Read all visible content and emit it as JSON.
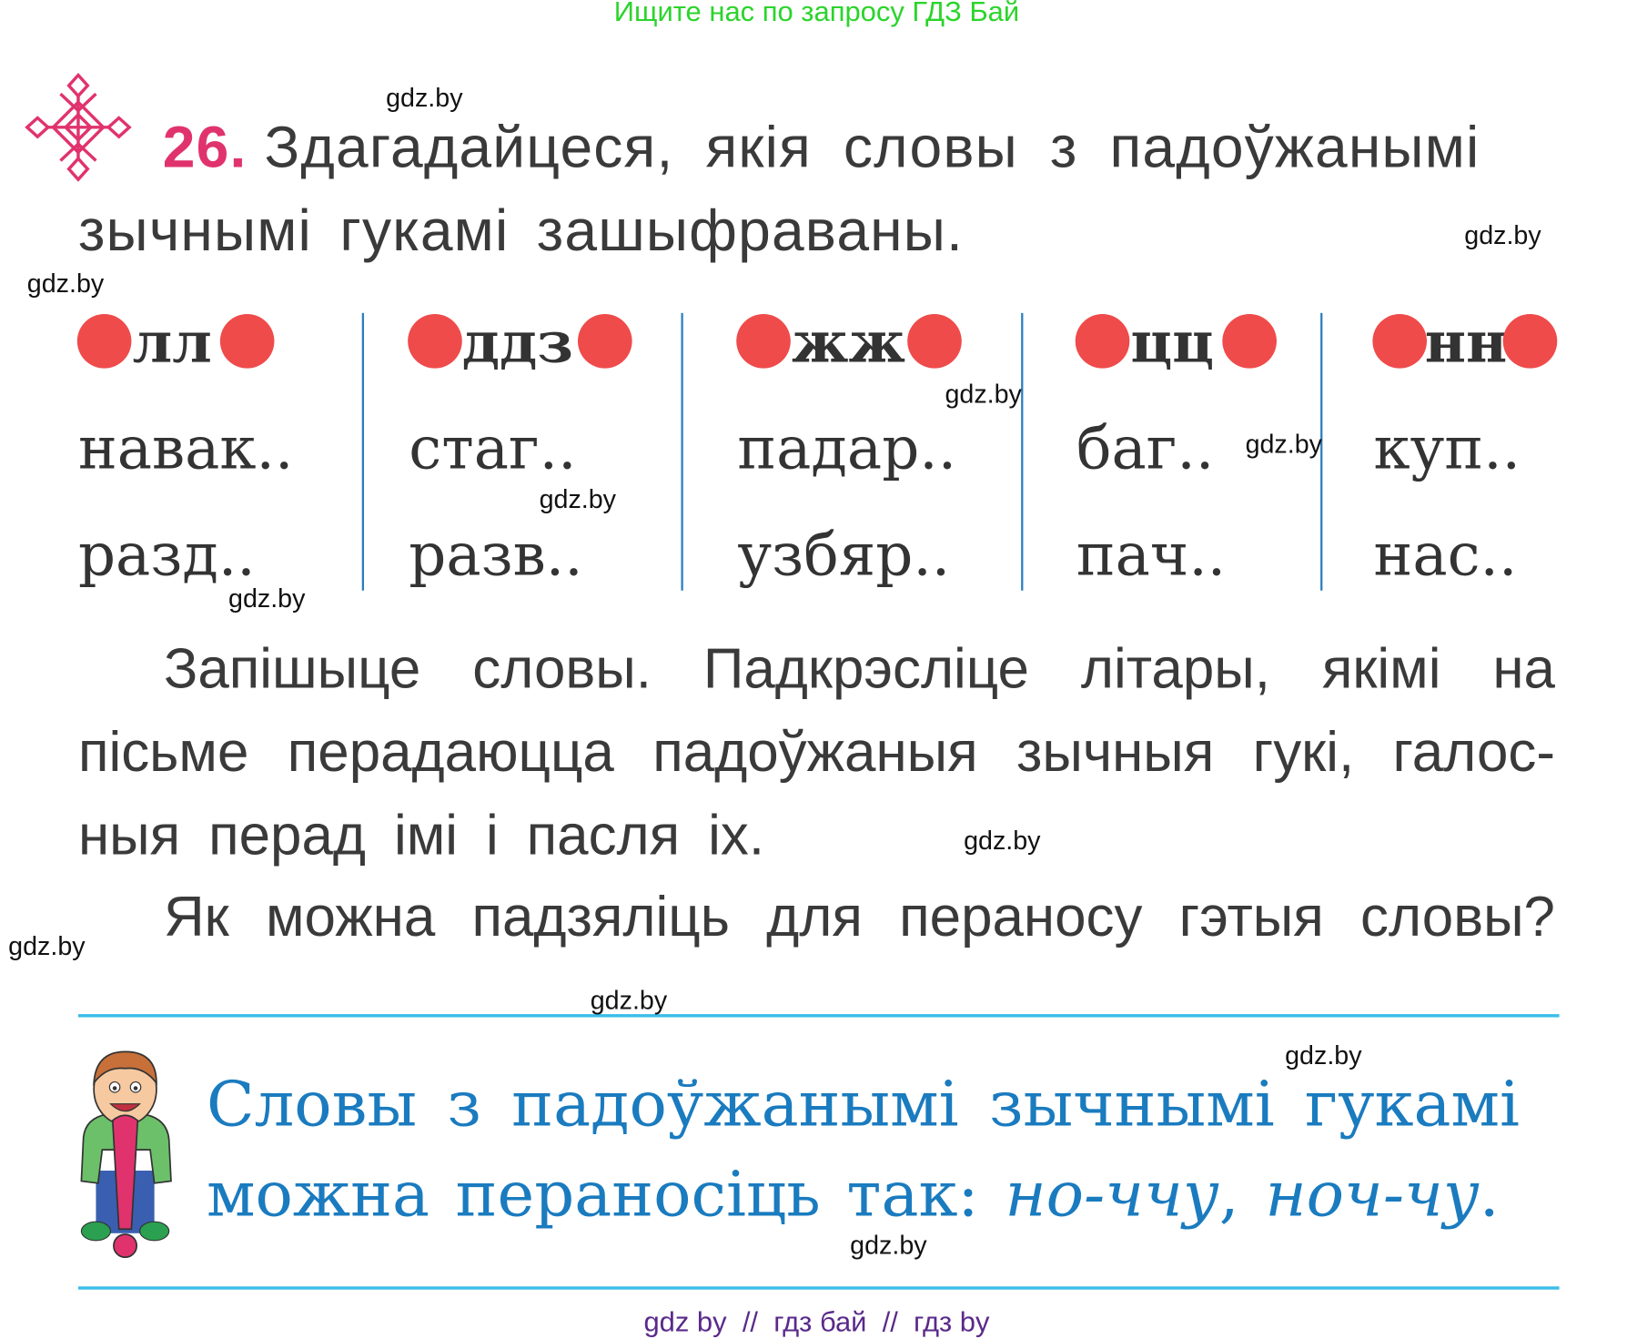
{
  "header_banner": "Ищите нас по запросу ГДЗ Бай",
  "task": {
    "number": "26.",
    "line1": "Здагадайцеся, якія словы з падоўжанымі",
    "line2": "зычнымі гукамі зашыфраваны."
  },
  "columns": [
    {
      "cipher": "лл",
      "words": [
        "навак..",
        "разд.."
      ]
    },
    {
      "cipher": "ддз",
      "words": [
        "стаг..",
        "разв.."
      ]
    },
    {
      "cipher": "жж",
      "words": [
        "падар..",
        "узбяр.."
      ]
    },
    {
      "cipher": "цц",
      "words": [
        "баг..",
        "пач.."
      ]
    },
    {
      "cipher": "нн",
      "words": [
        "куп..",
        "нас.."
      ]
    }
  ],
  "instructions": {
    "p1_line1": "Запішыце словы. Падкрэсліце літары, якімі на",
    "p1_line2": "пісьме перадаюцца падоўжаныя зычныя гукі, галос-",
    "p1_line3": "ныя перад імі і пасля іх.",
    "p2": "Як можна падзяліць для пераносу гэтыя словы?"
  },
  "rule": {
    "line1": "Словы з падоўжанымі зычнымі гукамі",
    "line2_prefix": "можна пераносіць так: ",
    "example1": "но-ччу",
    "sep": ", ",
    "example2": "ноч-чу",
    "end": "."
  },
  "watermark": "gdz.by",
  "footer": "gdz by  //  гдз бай  //  гдз by",
  "colors": {
    "accent_number": "#e0336e",
    "rule_text": "#1a7bbf",
    "dots": "#ef4b4b",
    "lines": "#3cbde8",
    "banner": "#2bd42b"
  },
  "icons": [
    "ornament-icon",
    "boy-exclamation-illustration"
  ]
}
